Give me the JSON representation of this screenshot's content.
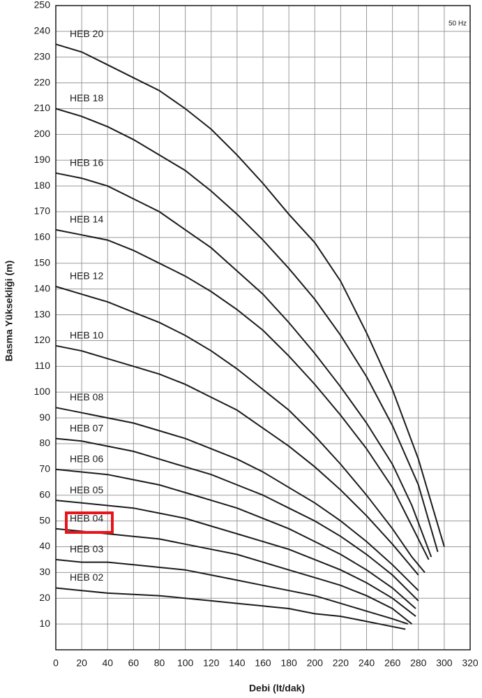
{
  "chart_data": {
    "type": "line",
    "annotation": "50 Hz",
    "x_label": "Debi (lt/dak)",
    "y_label": "Basma Yüksekliği (m)",
    "xlim": [
      0,
      320
    ],
    "ylim": [
      0,
      250
    ],
    "xticks": [
      0,
      20,
      40,
      60,
      80,
      100,
      120,
      140,
      160,
      180,
      200,
      220,
      240,
      260,
      280,
      300,
      320
    ],
    "yticks": [
      10,
      20,
      30,
      40,
      50,
      60,
      70,
      80,
      90,
      100,
      110,
      120,
      130,
      140,
      150,
      160,
      170,
      180,
      190,
      200,
      210,
      220,
      230,
      240,
      250
    ],
    "grid": true,
    "color": "#1a1a1a",
    "series": [
      {
        "name": "HEB 20",
        "x": [
          0,
          20,
          40,
          60,
          80,
          100,
          120,
          140,
          160,
          180,
          200,
          220,
          240,
          260,
          280,
          300
        ],
        "values": [
          235,
          232,
          227,
          222,
          217,
          210,
          202,
          192,
          181,
          169,
          158,
          143,
          123,
          101,
          74,
          40
        ]
      },
      {
        "name": "HEB 18",
        "x": [
          0,
          20,
          40,
          60,
          80,
          100,
          120,
          140,
          160,
          180,
          200,
          220,
          240,
          260,
          280,
          295
        ],
        "values": [
          210,
          207,
          203,
          198,
          192,
          186,
          178,
          169,
          159,
          148,
          136,
          122,
          106,
          87,
          64,
          38
        ]
      },
      {
        "name": "HEB 16",
        "x": [
          0,
          20,
          40,
          60,
          80,
          100,
          120,
          140,
          160,
          180,
          200,
          220,
          240,
          260,
          275,
          290
        ],
        "values": [
          185,
          183,
          180,
          175,
          170,
          163,
          156,
          147,
          138,
          127,
          115,
          102,
          88,
          72,
          56,
          36
        ]
      },
      {
        "name": "HEB 14",
        "x": [
          0,
          20,
          40,
          60,
          80,
          100,
          120,
          140,
          160,
          180,
          200,
          220,
          240,
          260,
          275,
          288
        ],
        "values": [
          163,
          161,
          159,
          155,
          150,
          145,
          139,
          132,
          124,
          114,
          103,
          91,
          78,
          63,
          48,
          35
        ]
      },
      {
        "name": "HEB 12",
        "x": [
          0,
          20,
          40,
          60,
          80,
          100,
          120,
          140,
          160,
          180,
          200,
          220,
          240,
          260,
          275,
          285
        ],
        "values": [
          141,
          138,
          135,
          131,
          127,
          122,
          116,
          109,
          101,
          93,
          83,
          72,
          60,
          47,
          36,
          30
        ]
      },
      {
        "name": "HEB 10",
        "x": [
          0,
          20,
          40,
          60,
          80,
          100,
          120,
          140,
          160,
          180,
          200,
          220,
          240,
          260,
          280
        ],
        "values": [
          118,
          116,
          113,
          110,
          107,
          103,
          98,
          93,
          86,
          79,
          71,
          62,
          52,
          41,
          29
        ]
      },
      {
        "name": "HEB 08",
        "x": [
          0,
          20,
          40,
          60,
          80,
          100,
          120,
          140,
          160,
          180,
          200,
          220,
          240,
          260,
          280
        ],
        "values": [
          94,
          92,
          90,
          88,
          85,
          82,
          78,
          74,
          69,
          63,
          57,
          50,
          42,
          33,
          23
        ]
      },
      {
        "name": "HEB 07",
        "x": [
          0,
          20,
          40,
          60,
          80,
          100,
          120,
          140,
          160,
          180,
          200,
          220,
          240,
          260,
          280
        ],
        "values": [
          82,
          81,
          79,
          77,
          74,
          71,
          68,
          64,
          60,
          55,
          50,
          44,
          37,
          29,
          19
        ]
      },
      {
        "name": "HEB 06",
        "x": [
          0,
          20,
          40,
          60,
          80,
          100,
          120,
          140,
          160,
          180,
          200,
          220,
          240,
          260,
          278
        ],
        "values": [
          70,
          69,
          68,
          66,
          64,
          61,
          58,
          55,
          51,
          47,
          42,
          37,
          31,
          24,
          16
        ]
      },
      {
        "name": "HEB 05",
        "x": [
          0,
          20,
          40,
          60,
          80,
          100,
          120,
          140,
          160,
          180,
          200,
          220,
          240,
          260,
          278
        ],
        "values": [
          58,
          57,
          56,
          55,
          53,
          51,
          48,
          45,
          42,
          39,
          35,
          31,
          26,
          20,
          13
        ]
      },
      {
        "name": "HEB 04",
        "x": [
          0,
          20,
          40,
          60,
          80,
          100,
          120,
          140,
          160,
          180,
          200,
          220,
          240,
          260,
          275
        ],
        "values": [
          47,
          46,
          45,
          44,
          43,
          41,
          39,
          37,
          34,
          31,
          28,
          25,
          21,
          16,
          10
        ]
      },
      {
        "name": "HEB 03",
        "x": [
          0,
          20,
          40,
          60,
          80,
          100,
          120,
          140,
          160,
          180,
          200,
          220,
          240,
          260,
          272
        ],
        "values": [
          35,
          34,
          34,
          33,
          32,
          31,
          29,
          27,
          25,
          23,
          21,
          18,
          15,
          12,
          10
        ]
      },
      {
        "name": "HEB 02",
        "x": [
          0,
          20,
          40,
          60,
          80,
          100,
          120,
          140,
          160,
          180,
          200,
          220,
          240,
          260,
          270
        ],
        "values": [
          24,
          23,
          22,
          21.5,
          21,
          20,
          19,
          18,
          17,
          16,
          14,
          13,
          11,
          9,
          8
        ]
      }
    ]
  }
}
